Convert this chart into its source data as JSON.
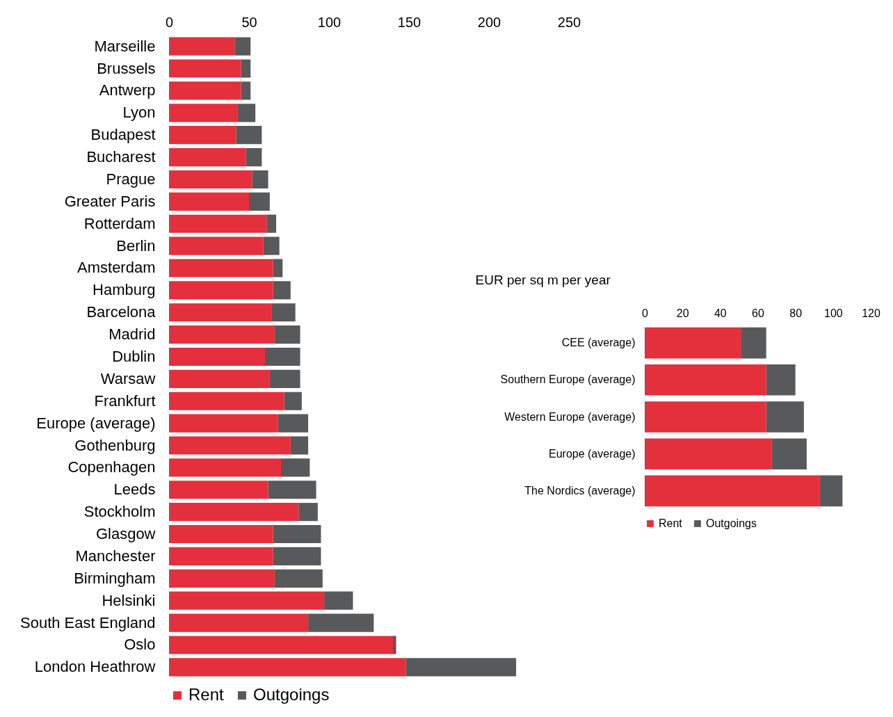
{
  "chart_data": [
    {
      "type": "bar",
      "orientation": "horizontal",
      "stacked": true,
      "categories": [
        "Marseille",
        "Brussels",
        "Antwerp",
        "Lyon",
        "Budapest",
        "Bucharest",
        "Prague",
        "Greater Paris",
        "Rotterdam",
        "Berlin",
        "Amsterdam",
        "Hamburg",
        "Barcelona",
        "Madrid",
        "Dublin",
        "Warsaw",
        "Frankfurt",
        "Europe (average)",
        "Gothenburg",
        "Copenhagen",
        "Leeds",
        "Stockholm",
        "Glasgow",
        "Manchester",
        "Birmingham",
        "Helsinki",
        "South East England",
        "Oslo",
        "London Heathrow"
      ],
      "series": [
        {
          "name": "Rent",
          "color": "#e3303c",
          "values": [
            41,
            45,
            45,
            43,
            42,
            48,
            52,
            50,
            61,
            59,
            65,
            65,
            64,
            66,
            60,
            63,
            72,
            68,
            76,
            70,
            62,
            81,
            65,
            65,
            66,
            97,
            87,
            140,
            148
          ]
        },
        {
          "name": "Outgoings",
          "color": "#58595b",
          "values": [
            10,
            6,
            6,
            11,
            16,
            10,
            10,
            13,
            6,
            10,
            6,
            11,
            15,
            16,
            22,
            19,
            11,
            19,
            11,
            18,
            30,
            12,
            30,
            30,
            30,
            18,
            41,
            2,
            69
          ]
        }
      ],
      "xlim": [
        0,
        250
      ],
      "xticks": [
        0,
        50,
        100,
        150,
        200,
        250
      ],
      "legend": "bottom"
    },
    {
      "type": "bar",
      "orientation": "horizontal",
      "stacked": true,
      "xlabel": "EUR per sq m per year",
      "categories": [
        "CEE (average)",
        "Southern Europe (average)",
        "Western Europe (average)",
        "Europe (average)",
        "The Nordics (average)"
      ],
      "series": [
        {
          "name": "Rent",
          "color": "#e3303c",
          "values": [
            51,
            64.5,
            64.5,
            67.5,
            93
          ]
        },
        {
          "name": "Outgoings",
          "color": "#58595b",
          "values": [
            13.5,
            15.5,
            20,
            18.5,
            12
          ]
        }
      ],
      "xlim": [
        0,
        120
      ],
      "xticks": [
        0,
        20,
        40,
        60,
        80,
        100,
        120
      ],
      "legend": "bottom"
    }
  ]
}
